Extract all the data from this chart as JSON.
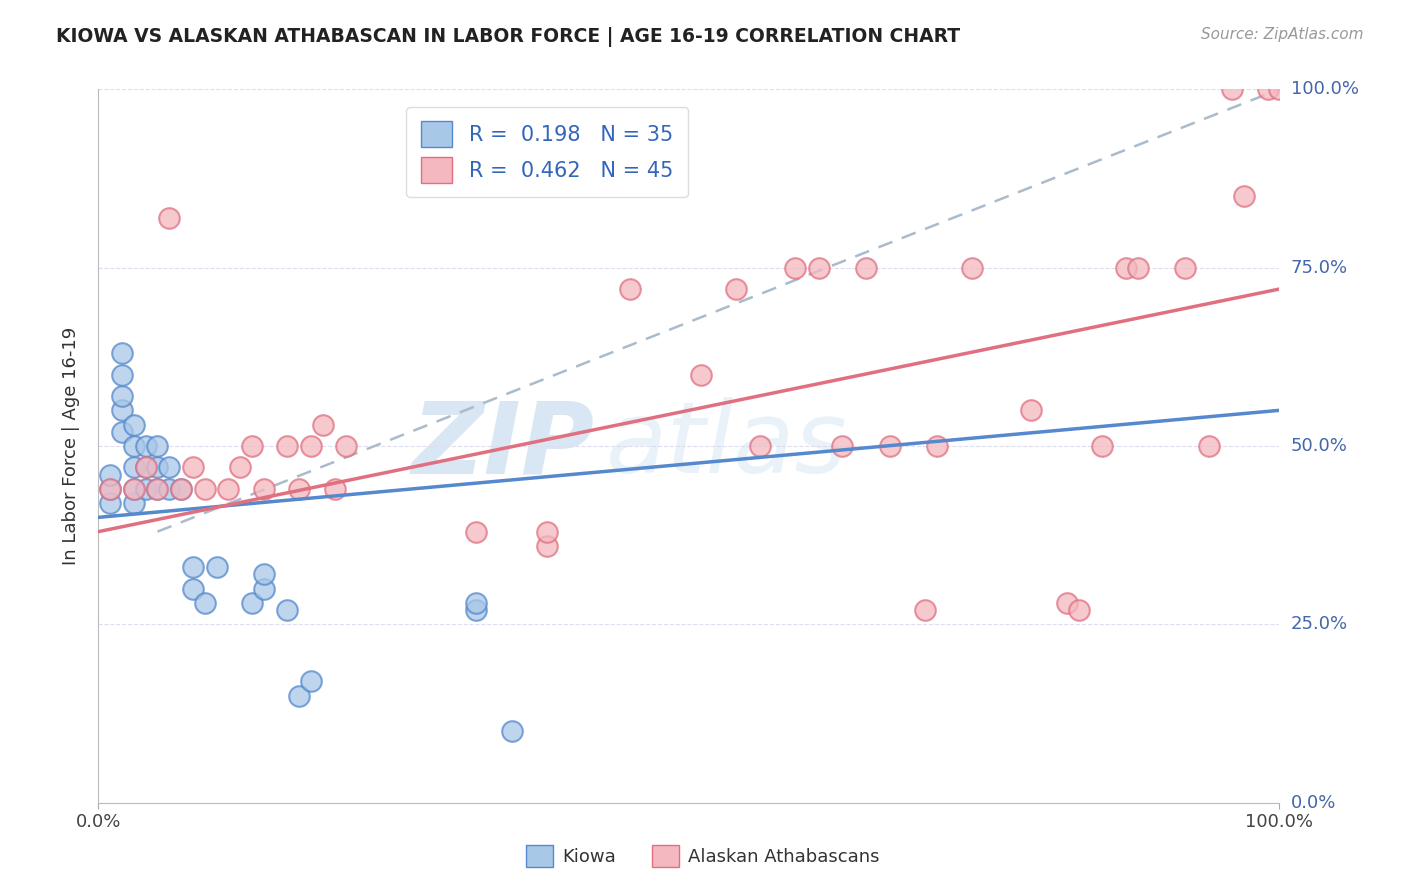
{
  "title": "KIOWA VS ALASKAN ATHABASCAN IN LABOR FORCE | AGE 16-19 CORRELATION CHART",
  "source": "Source: ZipAtlas.com",
  "ylabel": "In Labor Force | Age 16-19",
  "xlim": [
    0.0,
    1.0
  ],
  "ylim": [
    0.0,
    1.0
  ],
  "kiowa_color": "#a8c8e8",
  "athabascan_color": "#f4b8c0",
  "kiowa_edge": "#5588cc",
  "athabascan_edge": "#e07080",
  "kiowa_R": 0.198,
  "kiowa_N": 35,
  "athabascan_R": 0.462,
  "athabascan_N": 45,
  "watermark_text": "ZIP",
  "watermark_text2": "atlas",
  "legend_labels": [
    "Kiowa",
    "Alaskan Athabascans"
  ],
  "kiowa_x": [
    0.01,
    0.01,
    0.01,
    0.02,
    0.02,
    0.02,
    0.02,
    0.02,
    0.03,
    0.03,
    0.03,
    0.03,
    0.03,
    0.04,
    0.04,
    0.04,
    0.05,
    0.05,
    0.05,
    0.06,
    0.06,
    0.07,
    0.08,
    0.08,
    0.09,
    0.1,
    0.13,
    0.14,
    0.14,
    0.16,
    0.17,
    0.18,
    0.32,
    0.32,
    0.35
  ],
  "kiowa_y": [
    0.42,
    0.44,
    0.46,
    0.52,
    0.55,
    0.57,
    0.6,
    0.63,
    0.42,
    0.44,
    0.47,
    0.5,
    0.53,
    0.44,
    0.47,
    0.5,
    0.44,
    0.47,
    0.5,
    0.44,
    0.47,
    0.44,
    0.3,
    0.33,
    0.28,
    0.33,
    0.28,
    0.3,
    0.32,
    0.27,
    0.15,
    0.17,
    0.27,
    0.28,
    0.1
  ],
  "athabascan_x": [
    0.01,
    0.03,
    0.04,
    0.05,
    0.06,
    0.07,
    0.08,
    0.09,
    0.11,
    0.12,
    0.13,
    0.14,
    0.16,
    0.17,
    0.18,
    0.19,
    0.2,
    0.21,
    0.32,
    0.38,
    0.38,
    0.45,
    0.51,
    0.54,
    0.56,
    0.59,
    0.61,
    0.63,
    0.65,
    0.67,
    0.7,
    0.71,
    0.74,
    0.79,
    0.82,
    0.83,
    0.85,
    0.87,
    0.88,
    0.92,
    0.94,
    0.96,
    0.97,
    0.99,
    1.0
  ],
  "athabascan_y": [
    0.44,
    0.44,
    0.47,
    0.44,
    0.82,
    0.44,
    0.47,
    0.44,
    0.44,
    0.47,
    0.5,
    0.44,
    0.5,
    0.44,
    0.5,
    0.53,
    0.44,
    0.5,
    0.38,
    0.36,
    0.38,
    0.72,
    0.6,
    0.72,
    0.5,
    0.75,
    0.75,
    0.5,
    0.75,
    0.5,
    0.27,
    0.5,
    0.75,
    0.55,
    0.28,
    0.27,
    0.5,
    0.75,
    0.75,
    0.75,
    0.5,
    1.0,
    0.85,
    1.0,
    1.0
  ],
  "kiowa_trend": [
    0.0,
    0.4,
    1.0,
    0.55
  ],
  "athabascan_trend": [
    0.0,
    0.38,
    1.0,
    0.72
  ],
  "dashed_trend": [
    0.05,
    0.38,
    1.0,
    1.0
  ]
}
